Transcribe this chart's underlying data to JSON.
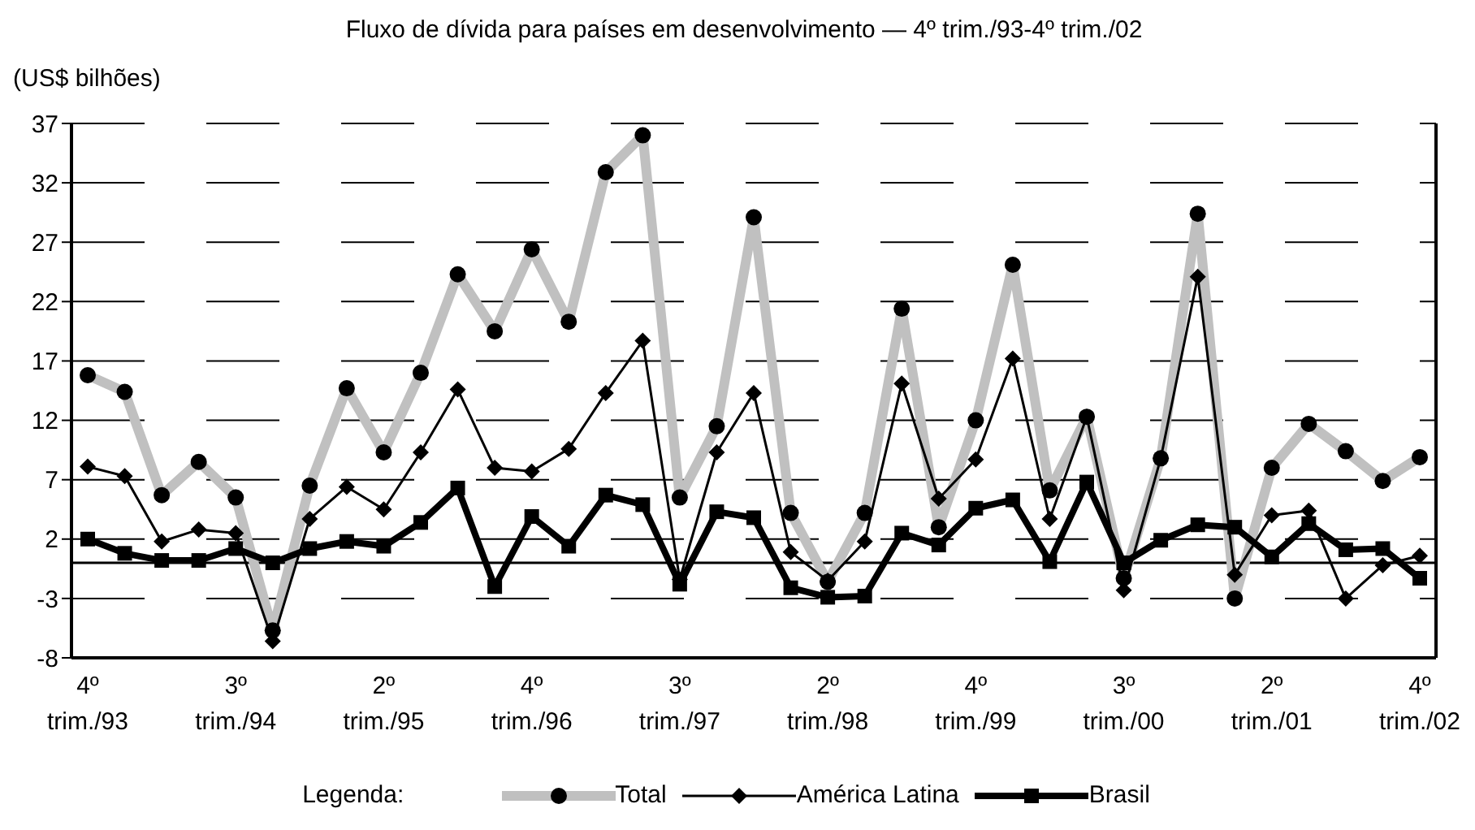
{
  "chart_data": {
    "type": "line",
    "title": "Fluxo de dívida para países em desenvolvimento — 4º trim./93-4º trim./02",
    "ylabel": "(US$ bilhões)",
    "legend_title": "Legenda:",
    "categories": [
      "4º trim./93",
      null,
      null,
      null,
      "3º trim./94",
      null,
      null,
      null,
      "2º trim./95",
      null,
      null,
      null,
      "4º trim./96",
      null,
      null,
      null,
      "3º trim./97",
      null,
      null,
      null,
      "2º trim./98",
      null,
      null,
      null,
      "4º trim./99",
      null,
      null,
      null,
      "3º trim./00",
      null,
      null,
      null,
      "2º trim./01",
      null,
      null,
      null,
      "4º trim./02"
    ],
    "series": [
      {
        "name": "Total",
        "color": "#c0c0c0",
        "marker": "circle",
        "values": [
          15.8,
          14.4,
          5.7,
          8.5,
          5.5,
          -5.7,
          6.5,
          14.7,
          9.3,
          16,
          24.3,
          19.5,
          26.4,
          20.3,
          32.9,
          36,
          5.5,
          11.5,
          29.1,
          4.2,
          -1.6,
          4.2,
          21.4,
          3,
          12,
          25.1,
          6.1,
          12.3,
          -1.3,
          8.8,
          29.4,
          -3,
          8,
          11.7,
          9.4,
          6.9,
          8.9
        ]
      },
      {
        "name": "América Latina",
        "color": "#000000",
        "marker": "diamond",
        "values": [
          8.1,
          7.3,
          1.8,
          2.8,
          2.5,
          -6.6,
          3.7,
          6.4,
          4.5,
          9.3,
          14.6,
          8,
          7.7,
          9.6,
          14.3,
          18.7,
          -1.4,
          9.3,
          14.3,
          0.9,
          -1.5,
          1.8,
          15.1,
          5.4,
          8.7,
          17.2,
          3.7,
          12.3,
          -2.3,
          8.8,
          24.1,
          -1,
          4,
          4.4,
          -3,
          -0.2,
          0.6
        ]
      },
      {
        "name": "Brasil",
        "color": "#000000",
        "marker": "square",
        "values": [
          2,
          0.8,
          0.2,
          0.2,
          1.2,
          0,
          1.2,
          1.8,
          1.4,
          3.4,
          6.3,
          -2,
          3.9,
          1.4,
          5.7,
          4.9,
          -1.8,
          4.3,
          3.8,
          -2.1,
          -2.9,
          -2.8,
          2.5,
          1.5,
          4.6,
          5.3,
          0.1,
          6.8,
          0,
          1.9,
          3.2,
          3,
          0.5,
          3.3,
          1.1,
          1.2,
          -1.3
        ]
      }
    ],
    "ylim": [
      -8,
      37
    ],
    "yticks": [
      -8,
      -3,
      2,
      7,
      12,
      17,
      22,
      27,
      32,
      37
    ],
    "grid": "y",
    "legend": "bottom",
    "line_style": "solid"
  }
}
